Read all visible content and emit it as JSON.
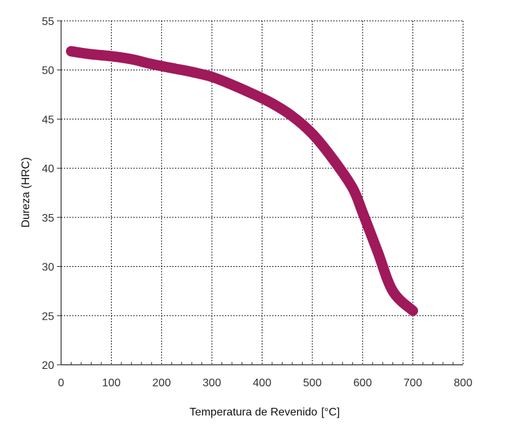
{
  "chart_data": {
    "type": "line",
    "xlabel": "Temperatura de Revenido",
    "xunit": "[°C]",
    "ylabel": "Dureza (HRC)",
    "xlim": [
      0,
      800
    ],
    "ylim": [
      20,
      55
    ],
    "xticks": [
      0,
      100,
      200,
      300,
      400,
      500,
      600,
      700,
      800
    ],
    "yticks": [
      20,
      25,
      30,
      35,
      40,
      45,
      50,
      55
    ],
    "grid": true,
    "series": [
      {
        "color": "#A0195A",
        "x": [
          20,
          60,
          100,
          140,
          180,
          220,
          260,
          300,
          340,
          380,
          420,
          460,
          500,
          540,
          580,
          600,
          630,
          660,
          700
        ],
        "y": [
          51.9,
          51.6,
          51.4,
          51.1,
          50.6,
          50.2,
          49.8,
          49.3,
          48.5,
          47.6,
          46.6,
          45.3,
          43.5,
          41.0,
          38.0,
          35.5,
          31.5,
          27.5,
          25.5
        ]
      }
    ]
  }
}
